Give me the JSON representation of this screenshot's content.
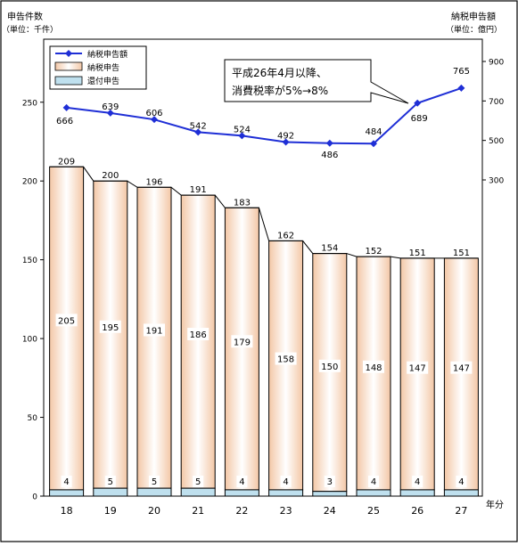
{
  "chart_data": {
    "type": "bar",
    "categories": [
      "18",
      "19",
      "20",
      "21",
      "22",
      "23",
      "24",
      "25",
      "26",
      "27"
    ],
    "x_unit_label": "年分",
    "left_axis": {
      "title": "申告件数",
      "unit": "（単位：千件）",
      "ylim": [
        0,
        290
      ],
      "ticks": [
        "0",
        "50",
        "100",
        "150",
        "200",
        "250"
      ]
    },
    "right_axis": {
      "title": "納税申告額",
      "unit": "（単位：億円）",
      "ticks": [
        "300",
        "500",
        "700",
        "900"
      ]
    },
    "bar_series": [
      {
        "name": "還付申告",
        "values": [
          4,
          5,
          5,
          5,
          4,
          4,
          3,
          4,
          4,
          4
        ]
      },
      {
        "name": "納税申告",
        "values": [
          205,
          195,
          191,
          186,
          179,
          158,
          150,
          148,
          147,
          147
        ]
      }
    ],
    "bar_totals": [
      209,
      200,
      196,
      191,
      183,
      162,
      154,
      152,
      151,
      151
    ],
    "line_series": {
      "name": "納税申告額",
      "values": [
        666,
        639,
        606,
        542,
        524,
        492,
        486,
        484,
        689,
        765
      ]
    },
    "legend": {
      "position": "top-left",
      "items": [
        "納税申告額",
        "納税申告",
        "還付申告"
      ]
    },
    "annotation": {
      "lines": [
        "平成26年4月以降、",
        "消費税率が5%→8%"
      ]
    },
    "colors": {
      "line": "#1f2fd6",
      "bar_fill_edge": "#f3c7a6",
      "bar_fill_center": "#ffffff",
      "refund_fill": "#bfe0ee",
      "bar_stroke": "#000000"
    }
  }
}
